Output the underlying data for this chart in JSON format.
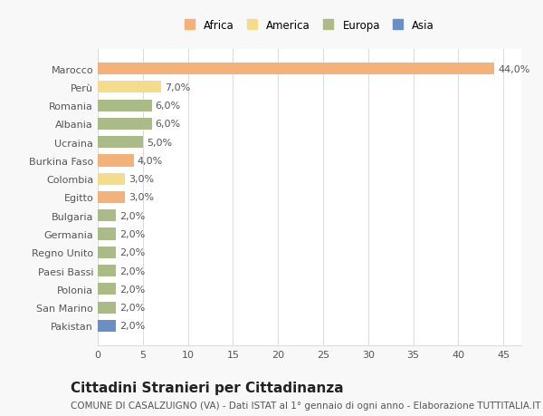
{
  "countries": [
    "Marocco",
    "Perù",
    "Romania",
    "Albania",
    "Ucraina",
    "Burkina Faso",
    "Colombia",
    "Egitto",
    "Bulgaria",
    "Germania",
    "Regno Unito",
    "Paesi Bassi",
    "Polonia",
    "San Marino",
    "Pakistan"
  ],
  "values": [
    44.0,
    7.0,
    6.0,
    6.0,
    5.0,
    4.0,
    3.0,
    3.0,
    2.0,
    2.0,
    2.0,
    2.0,
    2.0,
    2.0,
    2.0
  ],
  "continents": [
    "Africa",
    "America",
    "Europa",
    "Europa",
    "Europa",
    "Africa",
    "America",
    "Africa",
    "Europa",
    "Europa",
    "Europa",
    "Europa",
    "Europa",
    "Europa",
    "Asia"
  ],
  "colors": {
    "Africa": "#F2B27A",
    "America": "#F5DC8C",
    "Europa": "#AABB88",
    "Asia": "#6B8EC4"
  },
  "legend_order": [
    "Africa",
    "America",
    "Europa",
    "Asia"
  ],
  "xlim": [
    0,
    47
  ],
  "xticks": [
    0,
    5,
    10,
    15,
    20,
    25,
    30,
    35,
    40,
    45
  ],
  "title": "Cittadini Stranieri per Cittadinanza",
  "subtitle": "COMUNE DI CASALZUIGNO (VA) - Dati ISTAT al 1° gennaio di ogni anno - Elaborazione TUTTITALIA.IT",
  "plot_bg_color": "#FFFFFF",
  "fig_bg_color": "#F8F8F8",
  "grid_color": "#DDDDDD",
  "label_color": "#555555",
  "bar_label_color": "#555555",
  "tick_label_fontsize": 8,
  "annotation_fontsize": 8,
  "title_fontsize": 11,
  "subtitle_fontsize": 7.5,
  "bar_height": 0.65
}
